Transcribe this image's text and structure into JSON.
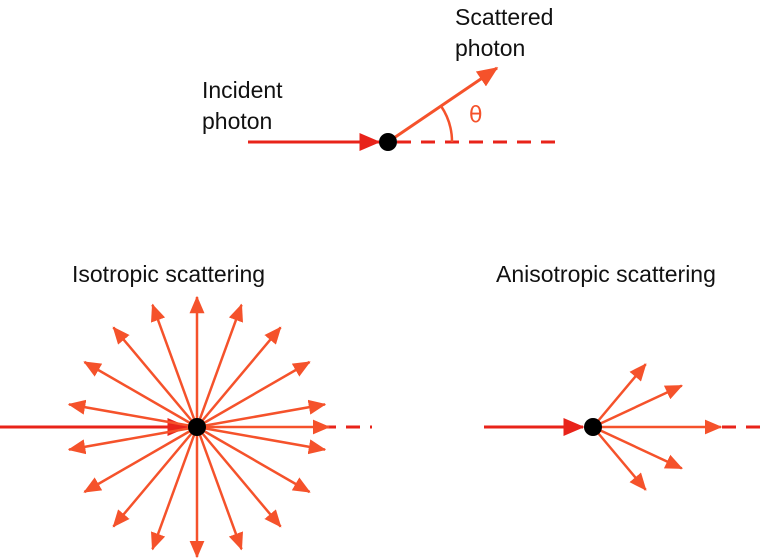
{
  "colors": {
    "ray": "#e8231a",
    "scatter_ray": "#f5522b",
    "particle": "#000000",
    "text": "#111111"
  },
  "top": {
    "incident_line1": "Incident",
    "incident_line2": "photon",
    "scattered_line1": "Scattered",
    "scattered_line2": "photon",
    "angle_symbol": "θ"
  },
  "isotropic": {
    "title": "Isotropic scattering",
    "ray_count": 18
  },
  "anisotropic": {
    "title": "Anisotropic scattering",
    "ray_count": 5
  }
}
